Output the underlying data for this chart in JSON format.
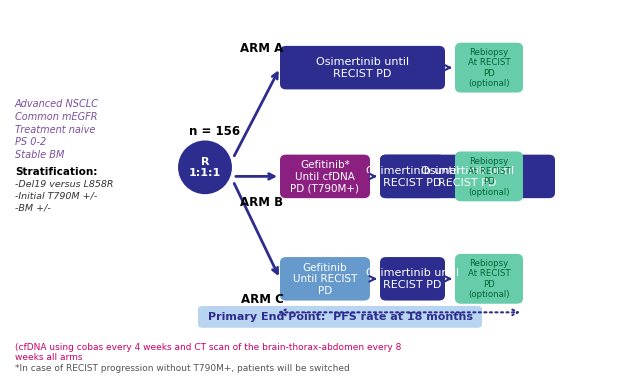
{
  "bg_color": "#ffffff",
  "title": "",
  "arm_labels": [
    "ARM A",
    "ARM B",
    "ARM C"
  ],
  "randomize_label": "R\n1:1:1",
  "n_label": "n = 156",
  "left_text_lines": [
    "Advanced NSCLC",
    "Common mEGFR",
    "Treatment naive",
    "PS 0-2",
    "Stable BM"
  ],
  "strat_title": "Stratification:",
  "strat_lines": [
    "-Del19 versus L858R",
    "-Initial T790M +/-",
    "-BM +/-"
  ],
  "arm_a_box": "Osimertinib until\nRECIST PD",
  "arm_b_box1": "Gefitinib*\nUntil cfDNA\nPD (T790M+)",
  "arm_b_box2": "Osimertinib until\nRECIST PD",
  "arm_c_box1": "Gefitinib\nUntil RECIST\nPD",
  "arm_c_box2": "Osimertinib until\nRECIST PD",
  "rebiopsy_text": "Rebiopsy\nAt RECIST\nPD\n(optional)",
  "primary_ep_text": "Primary End Point:  PFS rate at 18 months",
  "footnote1": "(cfDNA using cobas every 4 weeks and CT scan of the brain-thorax-abdomen every 8\nweeks all arms",
  "footnote2": "*In case of RECIST progression without T790M+, patients will be switched",
  "arm_a_color": "#2d2d8f",
  "arm_b_box1_color": "#8b2080",
  "arm_b_box2_color": "#2d2d8f",
  "arm_c_box1_color": "#6699cc",
  "arm_c_box2_color": "#2d2d8f",
  "rebiopsy_color": "#66ccaa",
  "circle_color": "#2d2d8f",
  "arrow_color": "#2d2d8f",
  "arm_label_color": "#000000",
  "left_text_color": "#7b4fa0",
  "strat_title_color": "#000000",
  "strat_text_color": "#333333",
  "primary_ep_bg": "#b8d4f0",
  "primary_ep_color": "#2d2d8f",
  "footnote_color": "#cc0066",
  "footnote2_color": "#555555"
}
